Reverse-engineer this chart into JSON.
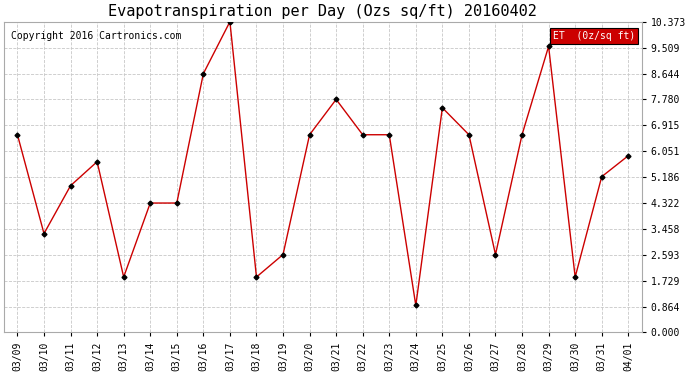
{
  "title": "Evapotranspiration per Day (Ozs sq/ft) 20160402",
  "copyright": "Copyright 2016 Cartronics.com",
  "legend_label": "ET  (0z/sq ft)",
  "legend_bg": "#cc0000",
  "legend_text_color": "#ffffff",
  "x_labels": [
    "03/09",
    "03/10",
    "03/11",
    "03/12",
    "03/13",
    "03/14",
    "03/15",
    "03/16",
    "03/17",
    "03/18",
    "03/19",
    "03/20",
    "03/21",
    "03/22",
    "03/23",
    "03/24",
    "03/25",
    "03/26",
    "03/27",
    "03/28",
    "03/29",
    "03/30",
    "03/31",
    "04/01"
  ],
  "y_values": [
    6.6,
    3.3,
    4.9,
    5.7,
    1.85,
    4.32,
    4.32,
    8.64,
    10.373,
    1.85,
    2.6,
    6.6,
    7.78,
    6.6,
    6.6,
    0.9,
    7.5,
    6.6,
    2.6,
    6.6,
    9.55,
    1.85,
    5.2,
    5.9
  ],
  "y_ticks": [
    0.0,
    0.864,
    1.729,
    2.593,
    3.458,
    4.322,
    5.186,
    6.051,
    6.915,
    7.78,
    8.644,
    9.509,
    10.373
  ],
  "ylim": [
    0,
    10.373
  ],
  "line_color": "#cc0000",
  "marker_color": "#000000",
  "bg_color": "#ffffff",
  "plot_bg_color": "#ffffff",
  "grid_color": "#c8c8c8",
  "title_fontsize": 11,
  "copyright_fontsize": 7,
  "tick_fontsize": 7
}
